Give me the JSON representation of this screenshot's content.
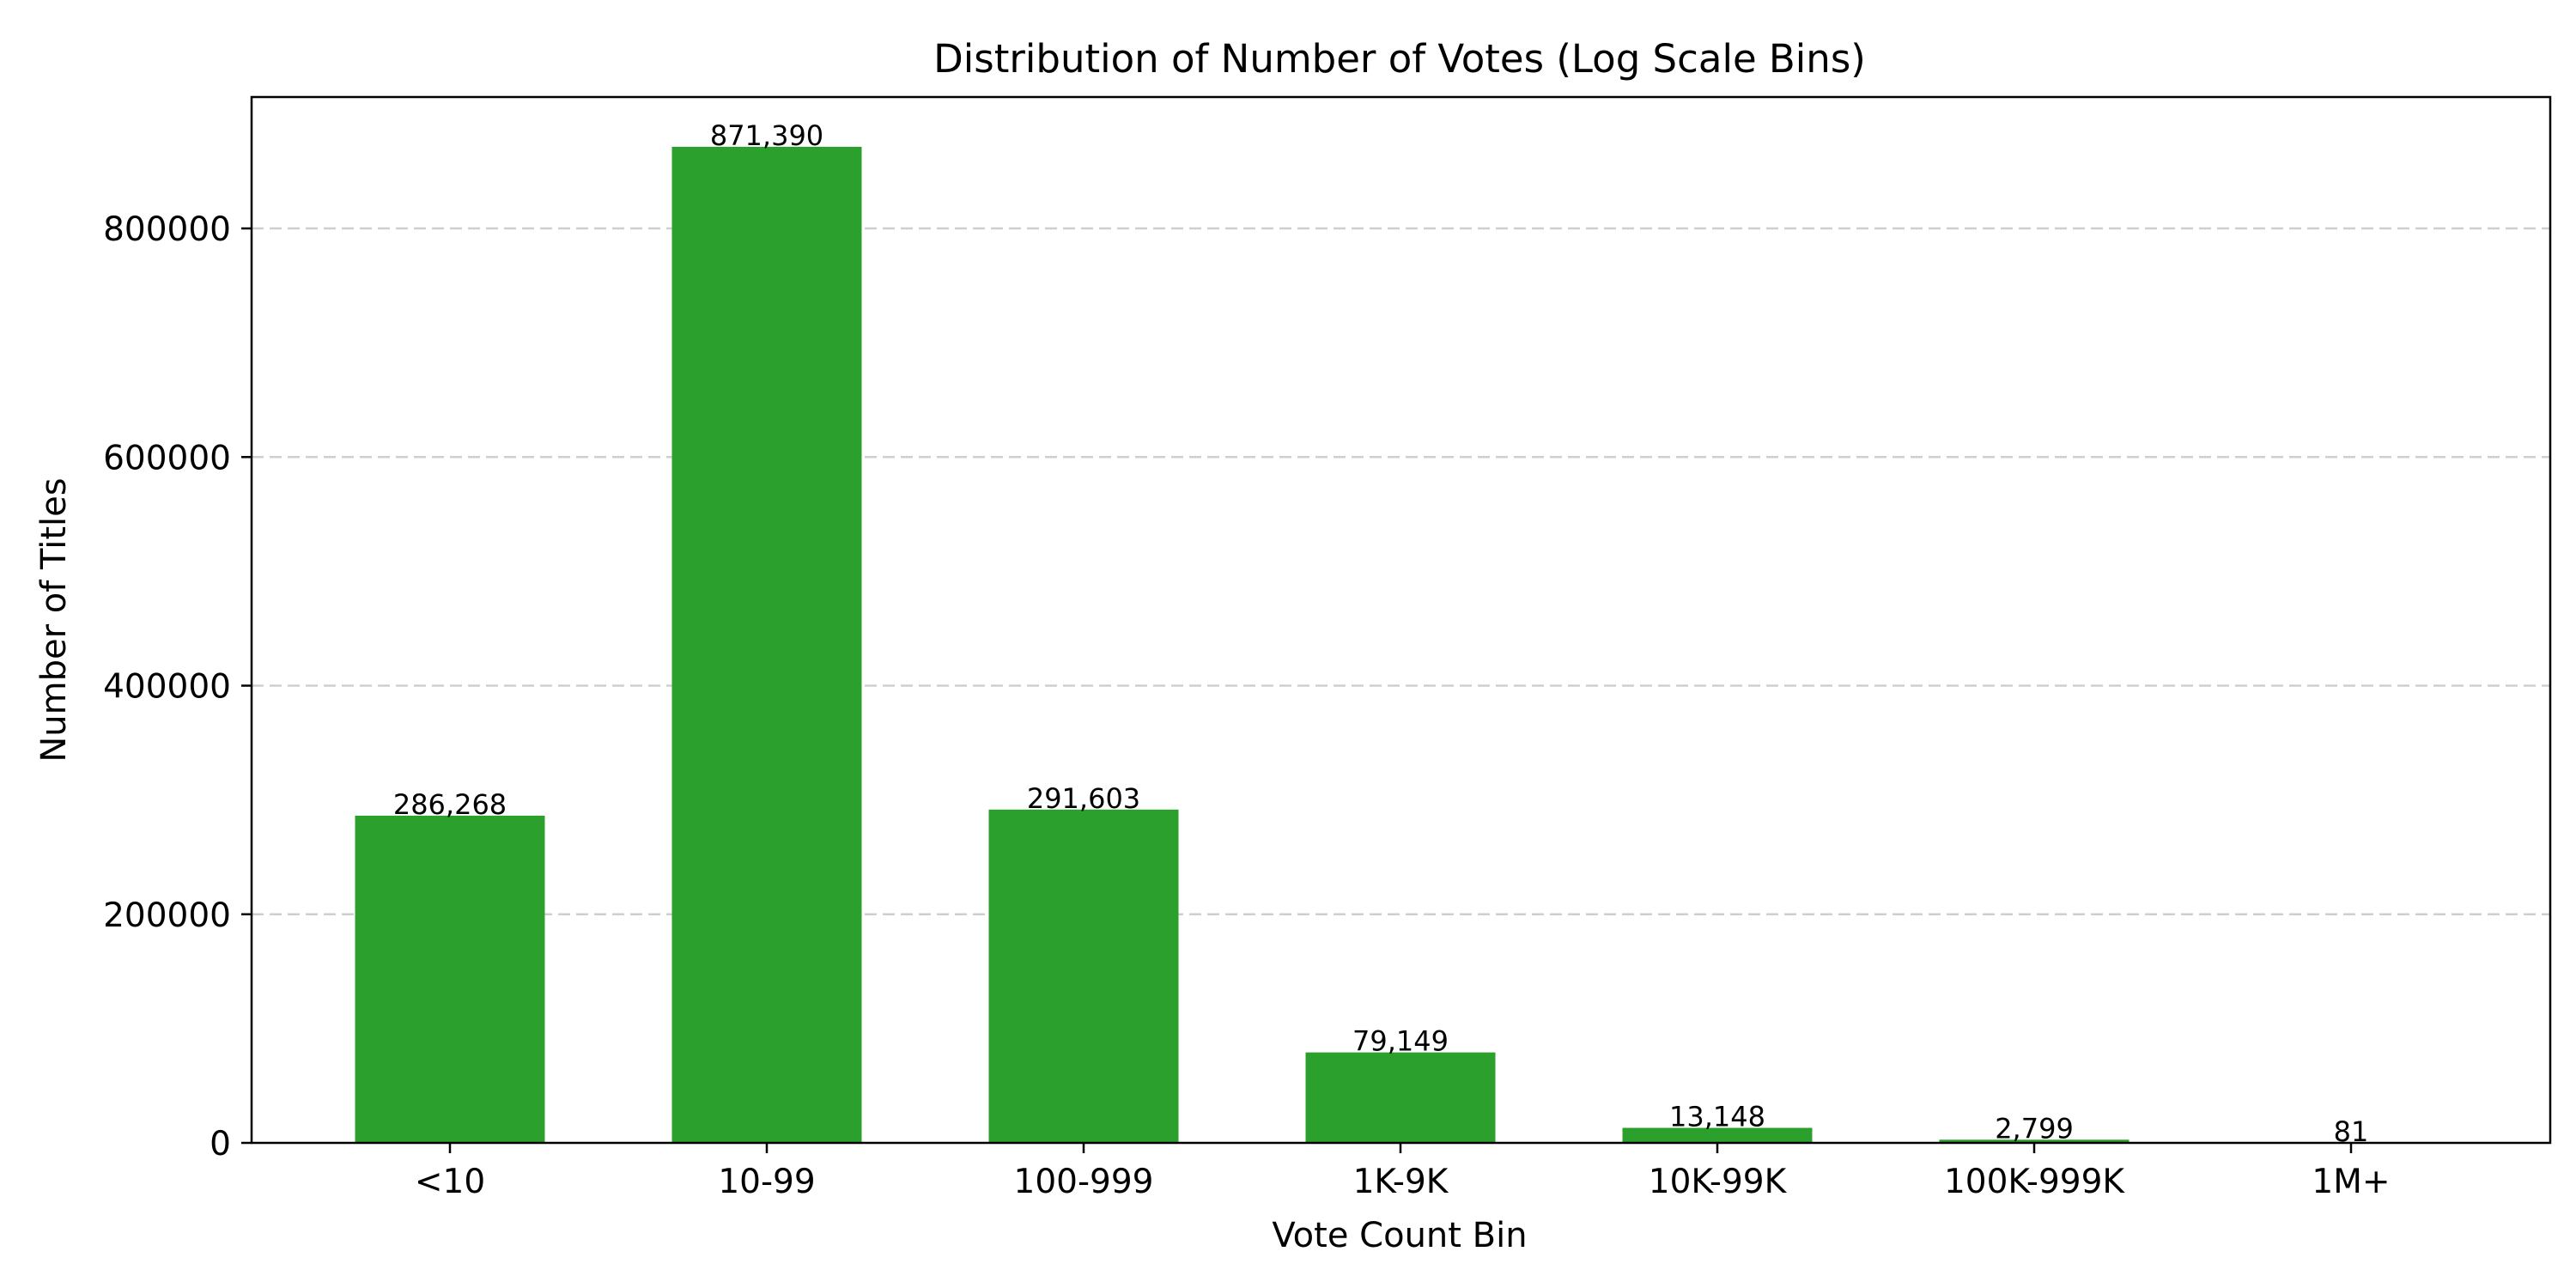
{
  "chart_data": {
    "type": "bar",
    "title": "Distribution of Number of Votes (Log Scale Bins)",
    "xlabel": "Vote Count Bin",
    "ylabel": "Number of Titles",
    "categories": [
      "<10",
      "10-99",
      "100-999",
      "1K-9K",
      "10K-99K",
      "100K-999K",
      "1M+"
    ],
    "values": [
      286268,
      871390,
      291603,
      79149,
      13148,
      2799,
      81
    ],
    "value_labels": [
      "286,268",
      "871,390",
      "291,603",
      "79,149",
      "13,148",
      "2,799",
      "81"
    ],
    "ylim": [
      0,
      914959
    ],
    "yticks": [
      0,
      200000,
      400000,
      600000,
      800000
    ],
    "ytick_labels": [
      "0",
      "200000",
      "400000",
      "600000",
      "800000"
    ],
    "grid": "y-dashed",
    "bar_color": "#2ca02c"
  }
}
